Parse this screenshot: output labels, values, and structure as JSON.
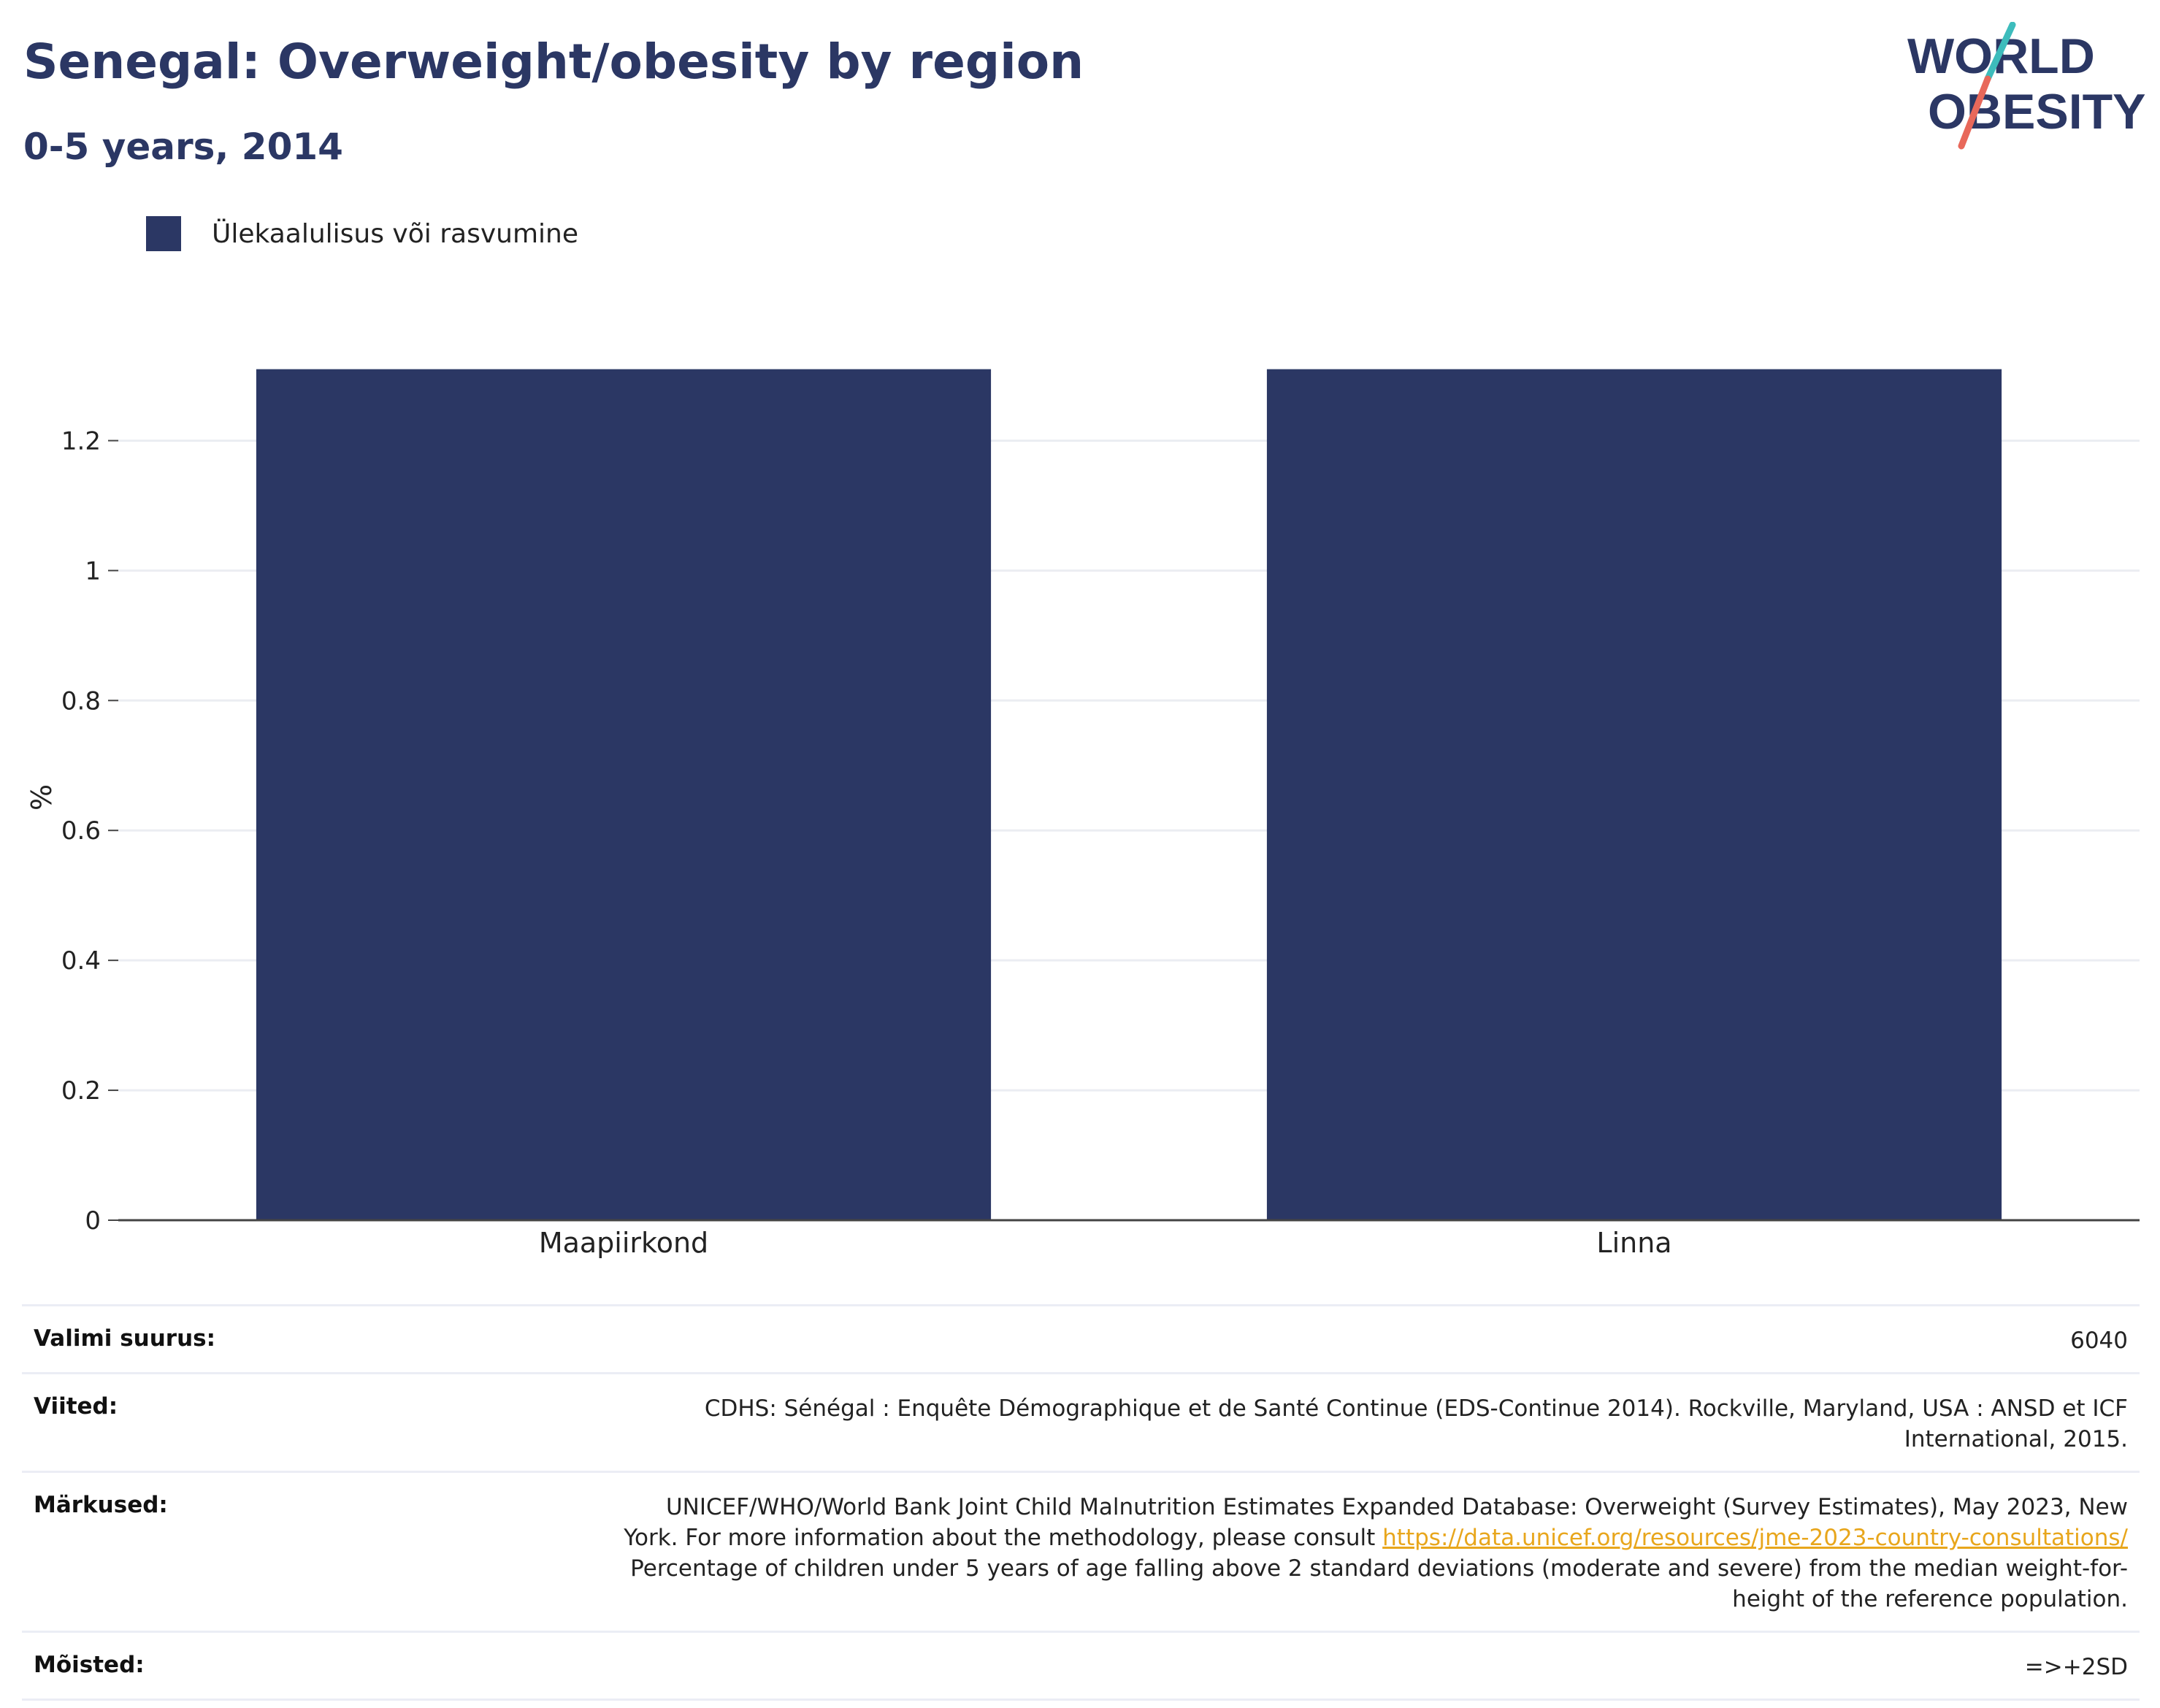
{
  "header": {
    "title": "Senegal: Overweight/obesity by region",
    "subtitle": "0-5 years, 2014"
  },
  "logo": {
    "line1": "WORLD",
    "line2": "OBESITY",
    "slash_color_top": "#3dbcbc",
    "slash_color_bottom": "#e8685a"
  },
  "legend": {
    "label": "Ülekaalulisus või rasvumine"
  },
  "chart_data": {
    "type": "bar",
    "categories": [
      "Maapiirkond",
      "Linna"
    ],
    "series": [
      {
        "name": "Ülekaalulisus või rasvumine",
        "values": [
          1.31,
          1.31
        ],
        "color": "#2b3764"
      }
    ],
    "ylabel": "%",
    "ylim": [
      0,
      1.35
    ],
    "yticks": [
      0,
      0.2,
      0.4,
      0.6,
      0.8,
      1,
      1.2
    ],
    "ytick_labels": [
      "0",
      "0.2",
      "0.4",
      "0.6",
      "0.8",
      "1",
      "1.2"
    ],
    "grid": true
  },
  "info": {
    "sample_label": "Valimi suurus:",
    "sample_value": "6040",
    "refs_label": "Viited:",
    "refs_line1": "CDHS: Sénégal : Enquête Démographique et de Santé Continue (EDS-Continue 2014). Rockville, Maryland, USA : ANSD et ICF",
    "refs_line2": "International, 2015.",
    "notes_label": "Märkused:",
    "notes_line1": "UNICEF/WHO/World Bank Joint Child Malnutrition Estimates Expanded Database: Overweight (Survey Estimates), May 2023, New",
    "notes_line2_pre": "York. For more information about the methodology, please consult ",
    "notes_link": "https://data.unicef.org/resources/jme-2023-country-consultations/",
    "notes_line3": "Percentage of children under 5 years of age falling above 2 standard deviations (moderate and severe) from the median weight-for-",
    "notes_line4": "height of the reference population.",
    "defs_label": "Mõisted:",
    "defs_value": "=>+2SD"
  }
}
